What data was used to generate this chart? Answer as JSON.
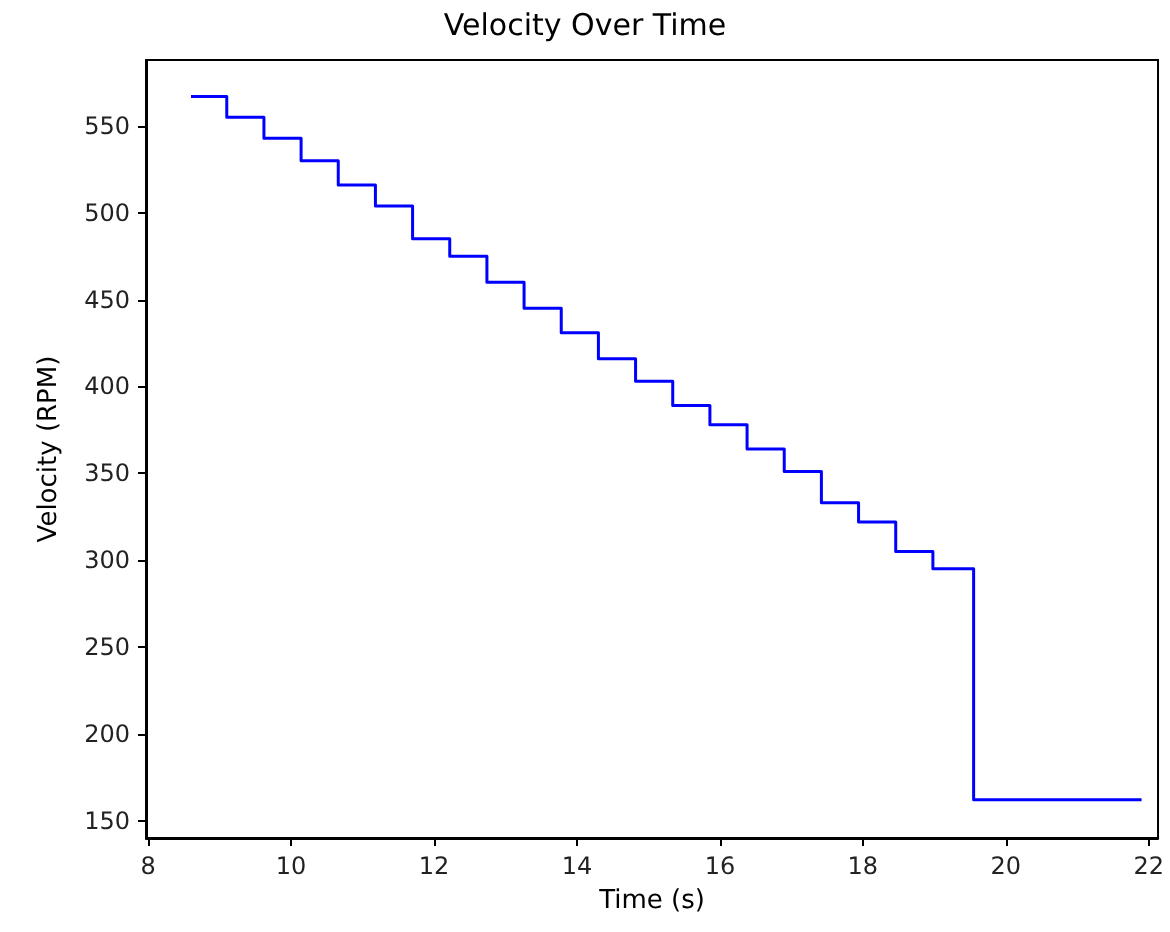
{
  "chart_data": {
    "type": "step",
    "title": "Velocity Over Time",
    "xlabel": "Time (s)",
    "ylabel": "Velocity (RPM)",
    "x": [
      8.6,
      9.1,
      9.62,
      10.14,
      10.66,
      11.18,
      11.7,
      12.22,
      12.74,
      13.26,
      13.78,
      14.3,
      14.82,
      15.34,
      15.86,
      16.38,
      16.9,
      17.42,
      17.94,
      18.46,
      18.98,
      19.55,
      21.9
    ],
    "series": [
      {
        "color": "#0000ff",
        "values": [
          567,
          555,
          543,
          530,
          516,
          504,
          485,
          475,
          460,
          445,
          431,
          416,
          403,
          389,
          378,
          364,
          351,
          333,
          322,
          305,
          295,
          162,
          162
        ]
      }
    ],
    "xlim": [
      7.97,
      22.13
    ],
    "xticks": [
      8,
      10,
      12,
      14,
      16,
      18,
      20,
      22
    ],
    "ylim": [
      140,
      588
    ],
    "yticks": [
      150,
      200,
      250,
      300,
      350,
      400,
      450,
      500,
      550
    ],
    "grid": false,
    "marker": "none",
    "line_style": "solid"
  }
}
